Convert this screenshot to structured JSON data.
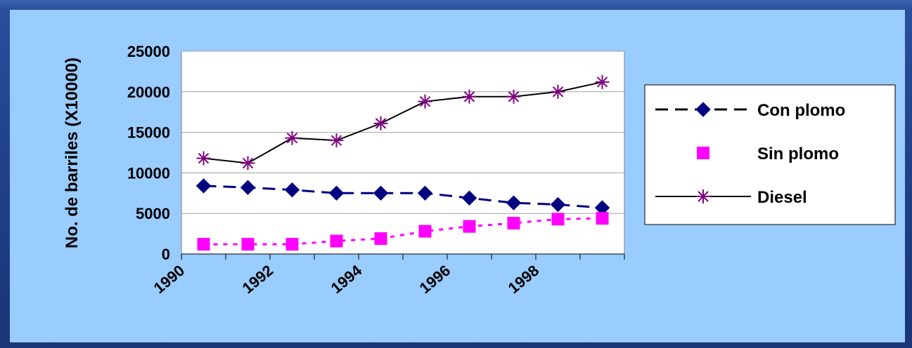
{
  "chart_data": {
    "type": "line",
    "ylabel": "No. de barriles (X10000)",
    "xlabel": "",
    "title": "",
    "ylim": [
      0,
      25000
    ],
    "yticks": [
      0,
      5000,
      10000,
      15000,
      20000,
      25000
    ],
    "xtick_labels": [
      "1990",
      "1992",
      "1994",
      "1996",
      "1998"
    ],
    "x": [
      1990,
      1991,
      1992,
      1993,
      1994,
      1995,
      1996,
      1997,
      1998,
      1999
    ],
    "grid": "horizontal",
    "legend_position": "right",
    "series": [
      {
        "name": "Con plomo",
        "values": [
          8400,
          8200,
          7900,
          7500,
          7500,
          7500,
          6900,
          6300,
          6100,
          5700
        ],
        "color": "#000080",
        "marker": "diamond",
        "line": "dashed"
      },
      {
        "name": "Sin plomo",
        "values": [
          1200,
          1200,
          1200,
          1600,
          1900,
          2800,
          3400,
          3800,
          4300,
          4400
        ],
        "color": "#ff00ff",
        "marker": "square",
        "line": "dotted"
      },
      {
        "name": "Diesel",
        "values": [
          11800,
          11200,
          14300,
          14000,
          16100,
          18800,
          19400,
          19400,
          20000,
          21200
        ],
        "color": "#800080",
        "marker": "star",
        "line": "solid"
      }
    ]
  }
}
